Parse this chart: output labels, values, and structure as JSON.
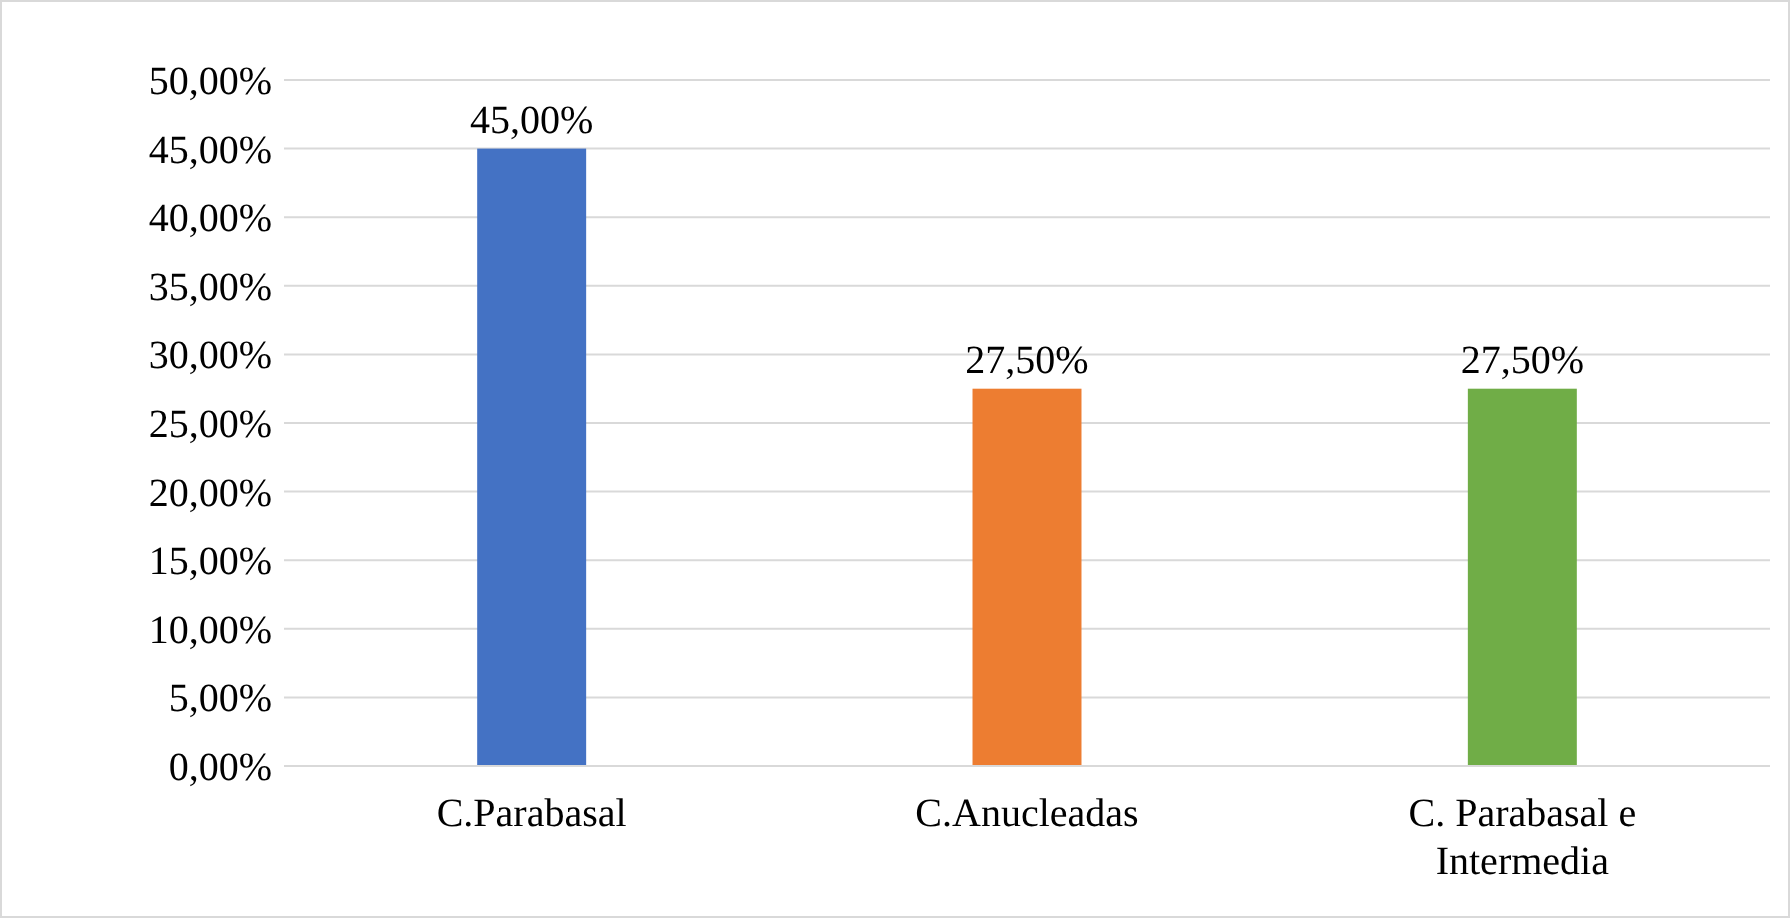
{
  "chart_data": {
    "type": "bar",
    "categories": [
      "C.Parabasal",
      "C.Anucleadas",
      "C. Parabasal e Intermedia"
    ],
    "values": [
      45,
      27.5,
      27.5
    ],
    "colors": [
      "#4472c4",
      "#ed7d31",
      "#70ad47"
    ],
    "value_labels": [
      "45,00%",
      "27,50%",
      "27,50%"
    ],
    "ylim": [
      0,
      50
    ],
    "yticks": [
      {
        "value": 0,
        "label": "0,00%"
      },
      {
        "value": 5,
        "label": "5,00%"
      },
      {
        "value": 10,
        "label": "10,00%"
      },
      {
        "value": 15,
        "label": "15,00%"
      },
      {
        "value": 20,
        "label": "20,00%"
      },
      {
        "value": 25,
        "label": "25,00%"
      },
      {
        "value": 30,
        "label": "30,00%"
      },
      {
        "value": 35,
        "label": "35,00%"
      },
      {
        "value": 40,
        "label": "40,00%"
      },
      {
        "value": 45,
        "label": "45,00%"
      },
      {
        "value": 50,
        "label": "50,00%"
      }
    ],
    "grid": "y"
  }
}
